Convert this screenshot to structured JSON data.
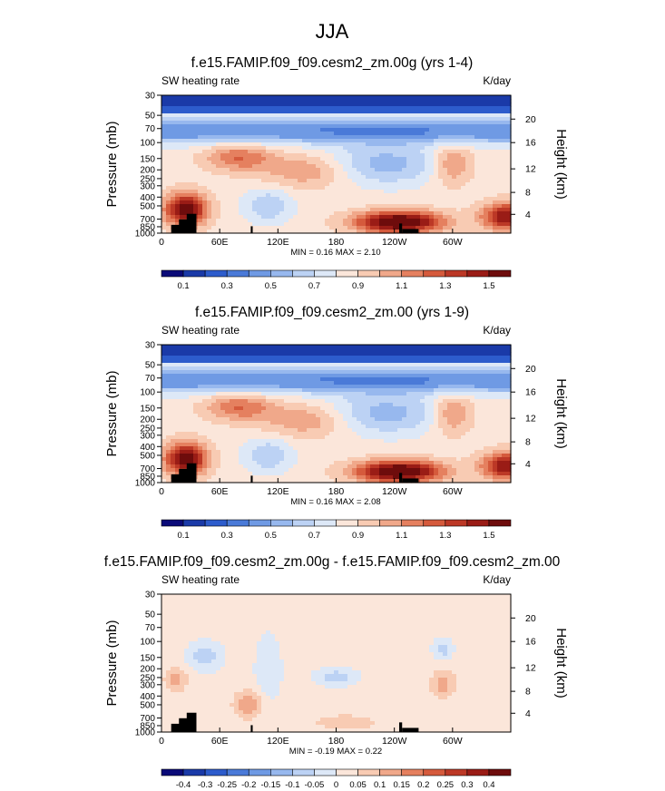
{
  "figure": {
    "title": "JJA"
  },
  "chart_data": [
    {
      "type": "heatmap",
      "title": "f.e15.FAMIP.f09_f09.cesm2_zm.00g (yrs 1-4)",
      "left_label": "SW heating rate",
      "right_label": "K/day",
      "ylabel": "Pressure (mb)",
      "ylabel_right": "Height (km)",
      "x_ticks": [
        "0",
        "60E",
        "120E",
        "180",
        "120W",
        "60W"
      ],
      "x_tick_lon": [
        0,
        60,
        120,
        180,
        240,
        300
      ],
      "xlim": [
        0,
        360
      ],
      "y_ticks": [
        "30",
        "50",
        "70",
        "100",
        "150",
        "200",
        "250",
        "300",
        "400",
        "500",
        "700",
        "850",
        "1000"
      ],
      "y_tick_p": [
        30,
        50,
        70,
        100,
        150,
        200,
        250,
        300,
        400,
        500,
        700,
        850,
        1000
      ],
      "height_ticks": [
        "20",
        "16",
        "12",
        "8",
        "4"
      ],
      "height_tick_p": [
        55,
        100,
        195,
        355,
        620
      ],
      "ylim": [
        30,
        1000
      ],
      "stats": "MIN =  0.16  MAX =  2.10",
      "colorbar_labels": [
        "0.1",
        "0.3",
        "0.5",
        "0.7",
        "0.9",
        "1.1",
        "1.3",
        "1.5"
      ],
      "colorbar_colors": [
        "#0a0a78",
        "#1a3aa8",
        "#2d5ccc",
        "#4a7ad8",
        "#6f9ae4",
        "#97b8ee",
        "#bcd2f4",
        "#dde8f7",
        "#fbe6da",
        "#f8cbb3",
        "#f0a88a",
        "#e5805f",
        "#d55a3c",
        "#bc3826",
        "#9a1c16",
        "#6e0c0c"
      ],
      "field": "heating_abs"
    },
    {
      "type": "heatmap",
      "title": "f.e15.FAMIP.f09_f09.cesm2_zm.00 (yrs 1-9)",
      "left_label": "SW heating rate",
      "right_label": "K/day",
      "ylabel": "Pressure (mb)",
      "ylabel_right": "Height (km)",
      "x_ticks": [
        "0",
        "60E",
        "120E",
        "180",
        "120W",
        "60W"
      ],
      "x_tick_lon": [
        0,
        60,
        120,
        180,
        240,
        300
      ],
      "xlim": [
        0,
        360
      ],
      "y_ticks": [
        "30",
        "50",
        "70",
        "100",
        "150",
        "200",
        "250",
        "300",
        "400",
        "500",
        "700",
        "850",
        "1000"
      ],
      "y_tick_p": [
        30,
        50,
        70,
        100,
        150,
        200,
        250,
        300,
        400,
        500,
        700,
        850,
        1000
      ],
      "height_ticks": [
        "20",
        "16",
        "12",
        "8",
        "4"
      ],
      "height_tick_p": [
        55,
        100,
        195,
        355,
        620
      ],
      "ylim": [
        30,
        1000
      ],
      "stats": "MIN =  0.16  MAX =  2.08",
      "colorbar_labels": [
        "0.1",
        "0.3",
        "0.5",
        "0.7",
        "0.9",
        "1.1",
        "1.3",
        "1.5"
      ],
      "colorbar_colors": [
        "#0a0a78",
        "#1a3aa8",
        "#2d5ccc",
        "#4a7ad8",
        "#6f9ae4",
        "#97b8ee",
        "#bcd2f4",
        "#dde8f7",
        "#fbe6da",
        "#f8cbb3",
        "#f0a88a",
        "#e5805f",
        "#d55a3c",
        "#bc3826",
        "#9a1c16",
        "#6e0c0c"
      ],
      "field": "heating_abs"
    },
    {
      "type": "heatmap",
      "title": "f.e15.FAMIP.f09_f09.cesm2_zm.00g - f.e15.FAMIP.f09_f09.cesm2_zm.00",
      "left_label": "SW heating rate",
      "right_label": "K/day",
      "ylabel": "Pressure (mb)",
      "ylabel_right": "Height (km)",
      "x_ticks": [
        "0",
        "60E",
        "120E",
        "180",
        "120W",
        "60W"
      ],
      "x_tick_lon": [
        0,
        60,
        120,
        180,
        240,
        300
      ],
      "xlim": [
        0,
        360
      ],
      "y_ticks": [
        "30",
        "50",
        "70",
        "100",
        "150",
        "200",
        "250",
        "300",
        "400",
        "500",
        "700",
        "850",
        "1000"
      ],
      "y_tick_p": [
        30,
        50,
        70,
        100,
        150,
        200,
        250,
        300,
        400,
        500,
        700,
        850,
        1000
      ],
      "height_ticks": [
        "20",
        "16",
        "12",
        "8",
        "4"
      ],
      "height_tick_p": [
        55,
        100,
        195,
        355,
        620
      ],
      "ylim": [
        30,
        1000
      ],
      "stats": "MIN = -0.19  MAX =  0.22",
      "colorbar_labels": [
        "-0.4",
        "-0.3",
        "-0.25",
        "-0.2",
        "-0.15",
        "-0.1",
        "-0.05",
        "0",
        "0.05",
        "0.1",
        "0.15",
        "0.2",
        "0.25",
        "0.3",
        "0.4"
      ],
      "colorbar_colors": [
        "#0a0a78",
        "#1a3aa8",
        "#2d5ccc",
        "#4a7ad8",
        "#6f9ae4",
        "#97b8ee",
        "#bcd2f4",
        "#dde8f7",
        "#fbe6da",
        "#f8cbb3",
        "#f0a88a",
        "#e5805f",
        "#d55a3c",
        "#bc3826",
        "#9a1c16",
        "#6e0c0c"
      ],
      "field": "heating_diff"
    }
  ]
}
